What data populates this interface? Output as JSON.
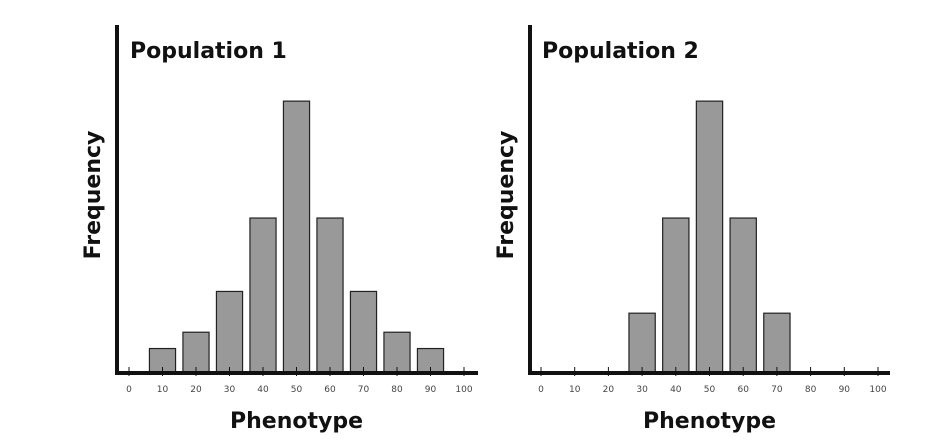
{
  "chart_data": [
    {
      "type": "bar",
      "title": "Population 1",
      "xlabel": "Phenotype",
      "ylabel": "Frequency",
      "x_ticks": [
        0,
        10,
        20,
        30,
        40,
        50,
        60,
        70,
        80,
        90,
        100
      ],
      "xlim": [
        0,
        100
      ],
      "ylim": [
        0,
        12.8
      ],
      "categories": [
        10,
        20,
        30,
        40,
        50,
        60,
        70,
        80,
        90
      ],
      "values": [
        0.9,
        1.5,
        3.0,
        5.7,
        10,
        5.7,
        3.0,
        1.5,
        0.9
      ],
      "y_ticks_shown": false,
      "grid": false,
      "bar_color": "#999999",
      "edge_color": "#222222"
    },
    {
      "type": "bar",
      "title": "Population 2",
      "xlabel": "Phenotype",
      "ylabel": "Frequency",
      "x_ticks": [
        0,
        10,
        20,
        30,
        40,
        50,
        60,
        70,
        80,
        90,
        100
      ],
      "xlim": [
        0,
        100
      ],
      "ylim": [
        0,
        12.8
      ],
      "categories": [
        30,
        40,
        50,
        60,
        70
      ],
      "values": [
        2.2,
        5.7,
        10,
        5.7,
        2.2
      ],
      "y_ticks_shown": false,
      "grid": false,
      "bar_color": "#999999",
      "edge_color": "#222222"
    }
  ]
}
